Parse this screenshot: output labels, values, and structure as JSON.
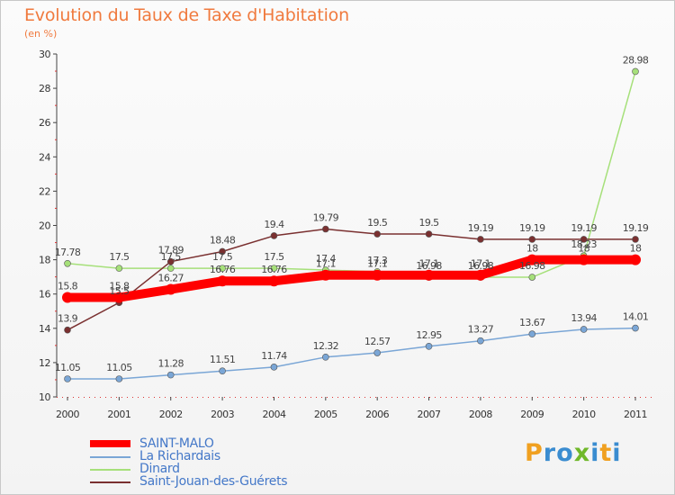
{
  "header": {
    "title": "Evolution du Taux de Taxe d'Habitation",
    "unit": "(en %)"
  },
  "chart_data": {
    "type": "line",
    "title": "Evolution du Taux de Taxe d'Habitation",
    "ylabel": "(en %)",
    "xlabel": "",
    "x": [
      "2000",
      "2001",
      "2002",
      "2003",
      "2004",
      "2005",
      "2006",
      "2007",
      "2008",
      "2009",
      "2010",
      "2011"
    ],
    "ylim": [
      10,
      30
    ],
    "yticks": [
      "10",
      "12",
      "14",
      "16",
      "18",
      "20",
      "22",
      "24",
      "26",
      "28",
      "30"
    ],
    "grid": false,
    "legend_position": "bottom-left",
    "series": [
      {
        "name": "SAINT-MALO",
        "color": "#ff0000",
        "values": [
          15.8,
          15.8,
          16.27,
          16.76,
          16.76,
          17.1,
          17.1,
          17.1,
          17.1,
          18,
          18,
          18
        ],
        "labels": [
          "15.8",
          "15.8",
          "16.27",
          "16.76",
          "16.76",
          "17.1",
          "17.1",
          "17.1",
          "17.1",
          "18",
          "18",
          "18"
        ]
      },
      {
        "name": "La Richardais",
        "color": "#7aa6d6",
        "values": [
          11.05,
          11.05,
          11.28,
          11.51,
          11.74,
          12.32,
          12.57,
          12.95,
          13.27,
          13.67,
          13.94,
          14.01
        ],
        "labels": [
          "11.05",
          "11.05",
          "11.28",
          "11.51",
          "11.74",
          "12.32",
          "12.57",
          "12.95",
          "13.27",
          "13.67",
          "13.94",
          "14.01"
        ]
      },
      {
        "name": "Dinard",
        "color": "#a6e07a",
        "values": [
          17.78,
          17.5,
          17.5,
          17.5,
          17.5,
          17.4,
          17.3,
          16.98,
          16.98,
          16.98,
          18.23,
          28.98
        ],
        "labels": [
          "17.78",
          "17.5",
          "17.5",
          "17.5",
          "17.5",
          "17.4",
          "17.3",
          "16.98",
          "16.98",
          "16.98",
          "18.23",
          "28.98"
        ]
      },
      {
        "name": "Saint-Jouan-des-Guérets",
        "color": "#7a3030",
        "values": [
          13.9,
          15.5,
          17.89,
          18.48,
          19.4,
          19.79,
          19.5,
          19.5,
          19.19,
          19.19,
          19.19,
          19.19
        ],
        "labels": [
          "13.9",
          "15.5",
          "17.89",
          "18.48",
          "19.4",
          "19.79",
          "19.5",
          "19.5",
          "19.19",
          "19.19",
          "19.19",
          "19.19"
        ]
      }
    ]
  },
  "logo": {
    "letters": [
      "P",
      "r",
      "o",
      "x",
      "i",
      "t",
      "i"
    ],
    "colors": [
      "#f0a020",
      "#3a8cd0",
      "#3a8cd0",
      "#70b82a",
      "#3a8cd0",
      "#f0a020",
      "#3a8cd0"
    ]
  }
}
